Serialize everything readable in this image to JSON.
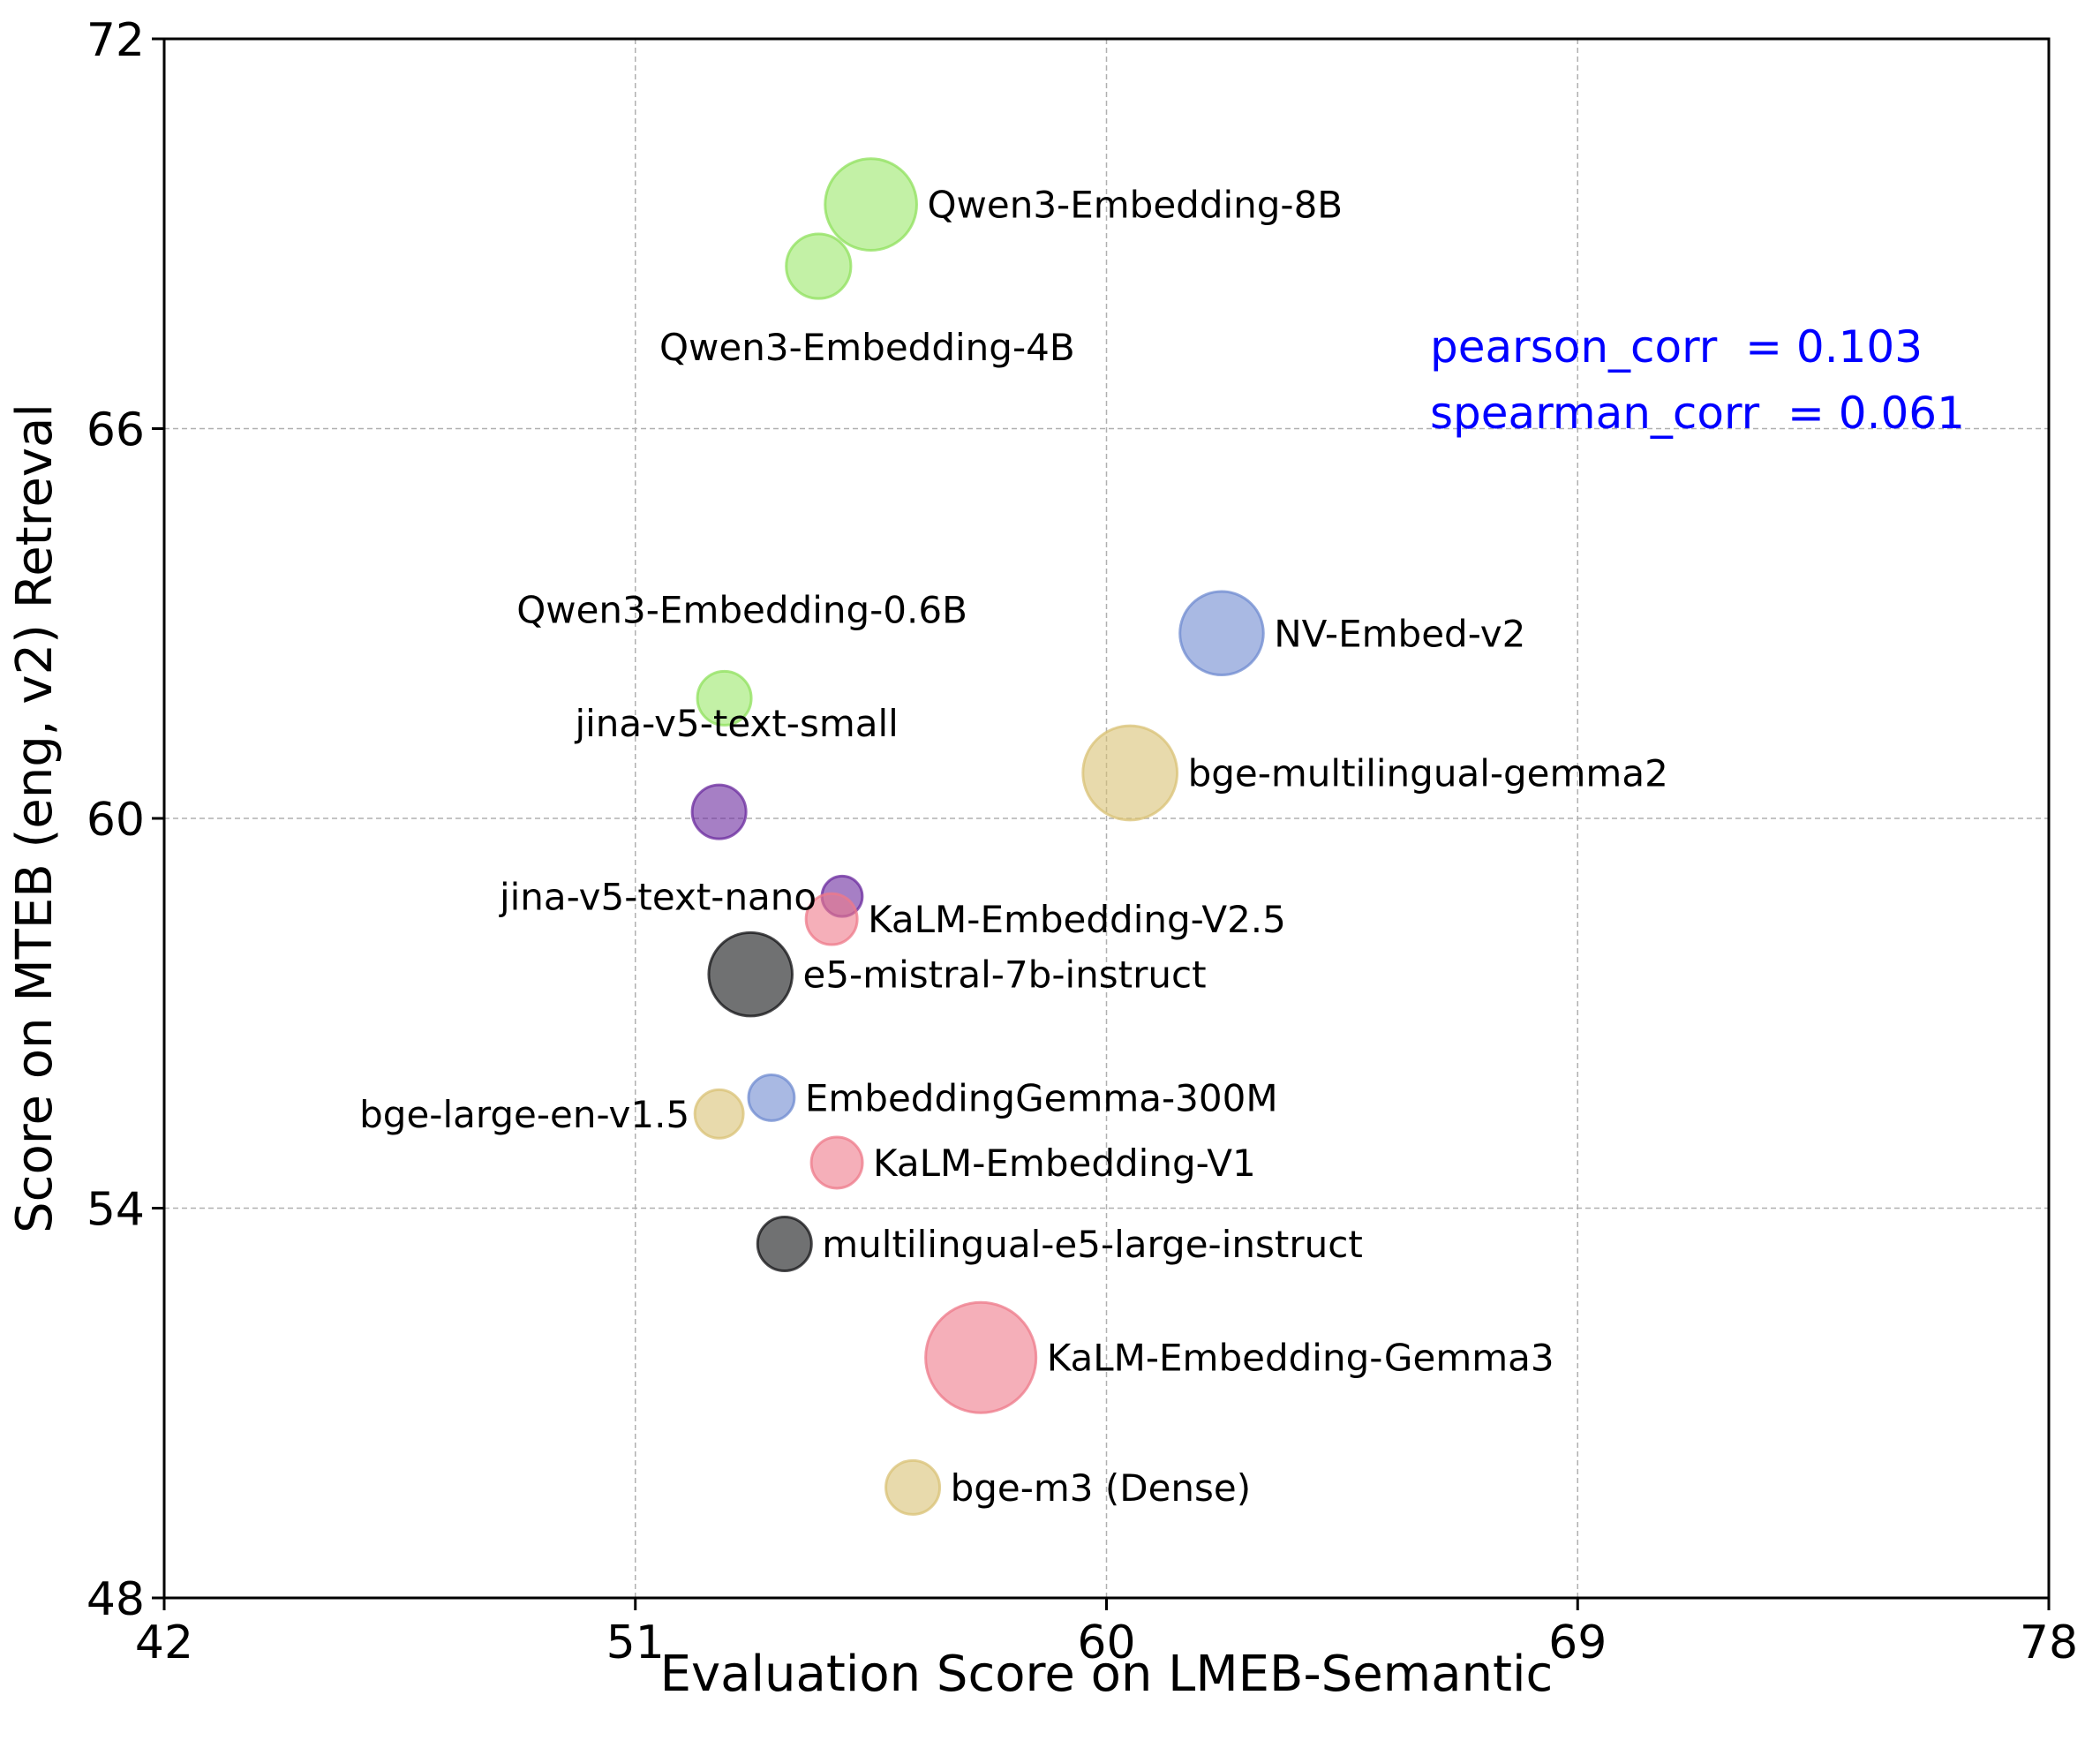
{
  "chart_data": {
    "type": "scatter",
    "title": "",
    "xlabel": "Evaluation Score on LMEB-Semantic",
    "ylabel": "Score on MTEB (eng, v2) Retreval",
    "xlim": [
      42,
      78
    ],
    "ylim": [
      48,
      72
    ],
    "xticks": [
      42,
      51,
      60,
      69,
      78
    ],
    "yticks": [
      48,
      54,
      60,
      66,
      72
    ],
    "xtick_labels": [
      "42",
      "51",
      "60",
      "69",
      "78"
    ],
    "ytick_labels": [
      "48",
      "54",
      "60",
      "66",
      "72"
    ],
    "grid": true,
    "bubble_size_note": "relative marker size",
    "annotations": [
      {
        "text": "pearson_corr  = 0.103",
        "color": "#0000ff"
      },
      {
        "text": "spearman_corr  = 0.061",
        "color": "#0000ff"
      }
    ],
    "groups": {
      "qwen": {
        "fill": "#9be86a",
        "stroke": "#8fe05c"
      },
      "jina": {
        "fill": "#6a2a9e",
        "stroke": "#6a2a9e"
      },
      "kalm": {
        "fill": "#ee7a8a",
        "stroke": "#ee7a8a"
      },
      "e5": {
        "fill": "#111214",
        "stroke": "#111214"
      },
      "nv": {
        "fill": "#6f8bd0",
        "stroke": "#6f8bd0"
      },
      "bge": {
        "fill": "#d9c275",
        "stroke": "#d9c275"
      }
    },
    "points": [
      {
        "name": "Qwen3-Embedding-8B",
        "x": 55.5,
        "y": 69.45,
        "size": 34,
        "group": "qwen",
        "label_pos": "right"
      },
      {
        "name": "Qwen3-Embedding-4B",
        "x": 54.5,
        "y": 68.5,
        "size": 24,
        "group": "qwen",
        "label_pos": "below"
      },
      {
        "name": "Qwen3-Embedding-0.6B",
        "x": 52.7,
        "y": 61.85,
        "size": 20,
        "group": "qwen",
        "label_pos": "above"
      },
      {
        "name": "jina-v5-text-small",
        "x": 52.6,
        "y": 60.1,
        "size": 20,
        "group": "jina",
        "label_pos": "above"
      },
      {
        "name": "jina-v5-text-nano",
        "x": 54.95,
        "y": 58.8,
        "size": 15,
        "group": "jina",
        "label_pos": "left"
      },
      {
        "name": "KaLM-Embedding-V2.5",
        "x": 54.75,
        "y": 58.45,
        "size": 19,
        "group": "kalm",
        "label_pos": "right"
      },
      {
        "name": "e5-mistral-7b-instruct",
        "x": 53.2,
        "y": 57.6,
        "size": 31,
        "group": "e5",
        "label_pos": "right"
      },
      {
        "name": "NV-Embed-v2",
        "x": 62.2,
        "y": 62.85,
        "size": 31,
        "group": "nv",
        "label_pos": "right"
      },
      {
        "name": "bge-multilingual-gemma2",
        "x": 60.45,
        "y": 60.7,
        "size": 35,
        "group": "bge",
        "label_pos": "right"
      },
      {
        "name": "bge-large-en-v1.5",
        "x": 52.6,
        "y": 55.45,
        "size": 18,
        "group": "bge",
        "label_pos": "left"
      },
      {
        "name": "EmbeddingGemma-300M",
        "x": 53.6,
        "y": 55.7,
        "size": 17,
        "group": "nv",
        "label_pos": "right"
      },
      {
        "name": "KaLM-Embedding-V1",
        "x": 54.85,
        "y": 54.7,
        "size": 19,
        "group": "kalm",
        "label_pos": "right"
      },
      {
        "name": "multilingual-e5-large-instruct",
        "x": 53.85,
        "y": 53.45,
        "size": 20,
        "group": "e5",
        "label_pos": "right"
      },
      {
        "name": "KaLM-Embedding-Gemma3",
        "x": 57.6,
        "y": 51.7,
        "size": 41,
        "group": "kalm",
        "label_pos": "right"
      },
      {
        "name": "bge-m3 (Dense)",
        "x": 56.3,
        "y": 49.7,
        "size": 20,
        "group": "bge",
        "label_pos": "right"
      }
    ]
  }
}
